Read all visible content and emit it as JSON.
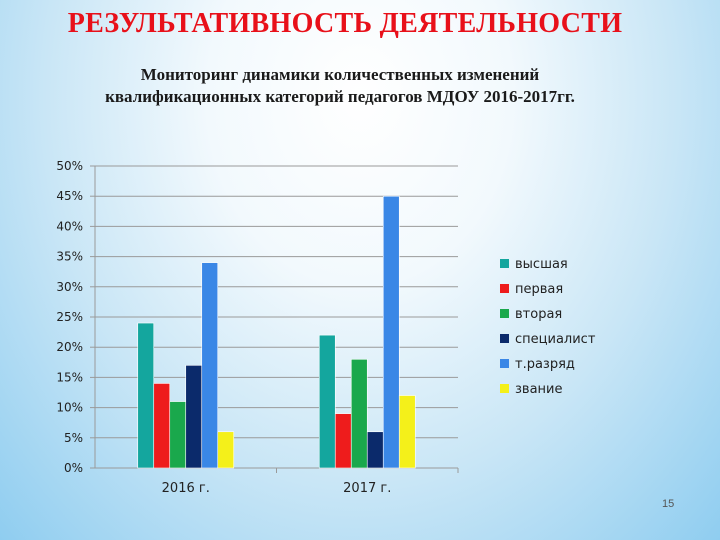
{
  "header": {
    "title": "РЕЗУЛЬТАТИВНОСТЬ ДЕЯТЕЛЬНОСТИ",
    "subtitle_line1": "Мониторинг динамики количественных изменений",
    "subtitle_line2": "квалификационных категорий педагогов МДОУ  2016-2017гг."
  },
  "page_number": "15",
  "chart_data": {
    "type": "bar",
    "categories": [
      "2016 г.",
      "2017 г."
    ],
    "series": [
      {
        "name": "высшая",
        "color": "#14a69e",
        "values": [
          24,
          22
        ]
      },
      {
        "name": "первая",
        "color": "#ee1c1c",
        "values": [
          14,
          9
        ]
      },
      {
        "name": "вторая",
        "color": "#1aa84c",
        "values": [
          11,
          18
        ]
      },
      {
        "name": "специалист",
        "color": "#0b2a6b",
        "values": [
          17,
          6
        ]
      },
      {
        "name": "т.разряд",
        "color": "#3a87e6",
        "values": [
          34,
          45
        ]
      },
      {
        "name": "звание",
        "color": "#f4f01a",
        "values": [
          6,
          12
        ]
      }
    ],
    "ylim": [
      0,
      50
    ],
    "yticks": [
      "0%",
      "5%",
      "10%",
      "15%",
      "20%",
      "25%",
      "30%",
      "35%",
      "40%",
      "45%",
      "50%"
    ],
    "grid": true,
    "legend_position": "right"
  }
}
